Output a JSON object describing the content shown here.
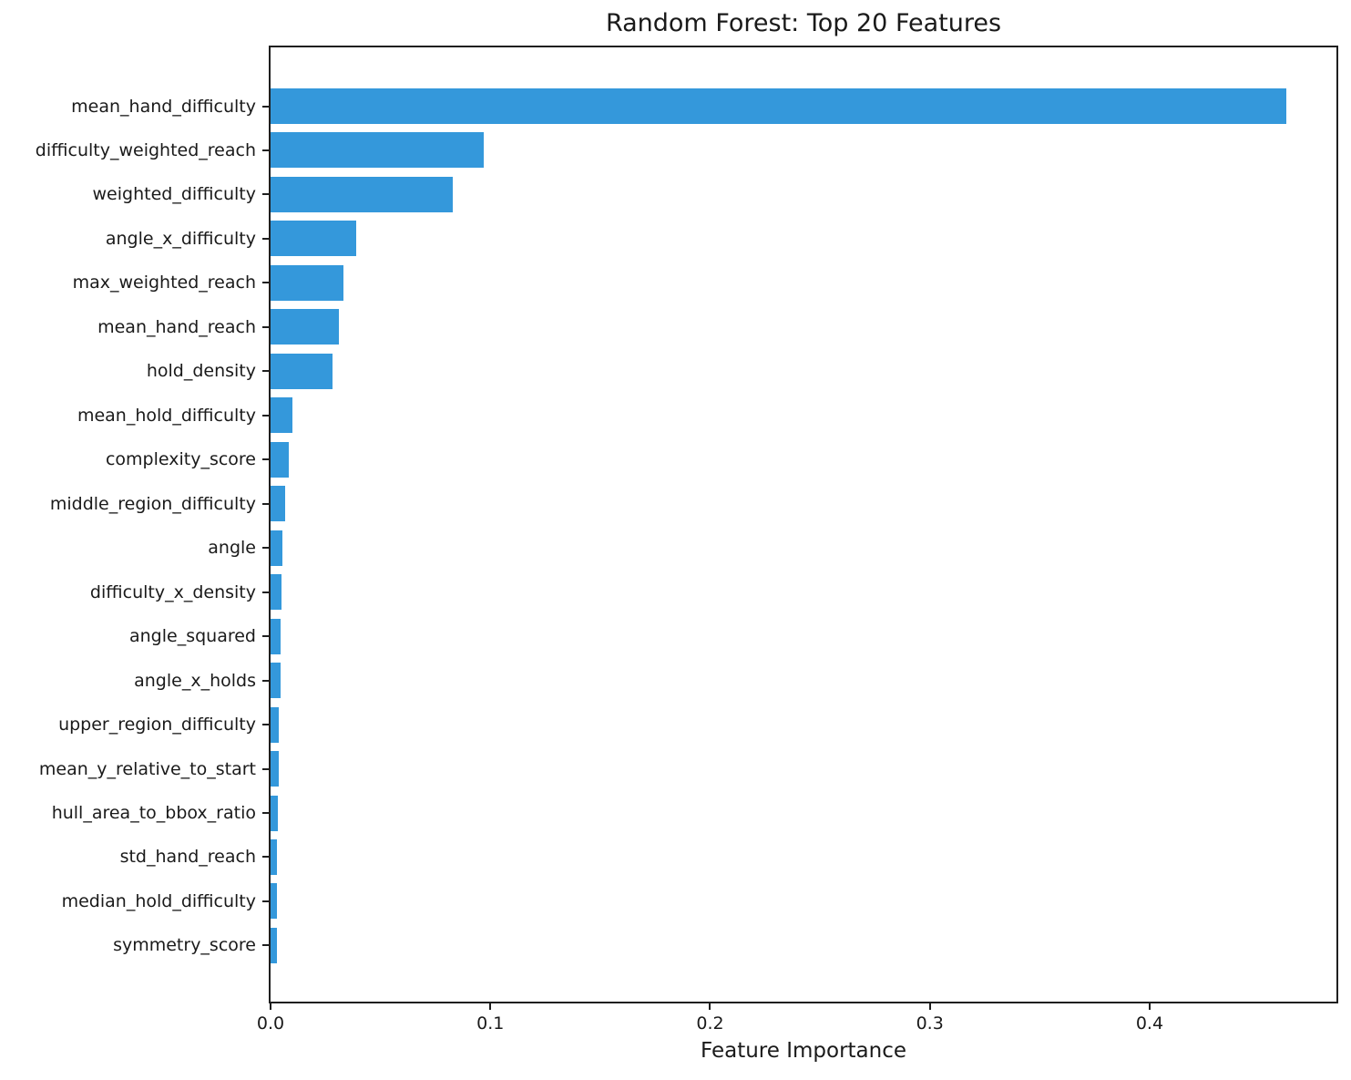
{
  "chart_data": {
    "type": "bar",
    "orientation": "horizontal",
    "title": "Random Forest: Top 20 Features",
    "xlabel": "Feature Importance",
    "ylabel": "",
    "xlim": [
      0,
      0.485
    ],
    "x_ticks": [
      0.0,
      0.1,
      0.2,
      0.3,
      0.4
    ],
    "x_tick_labels": [
      "0.0",
      "0.1",
      "0.2",
      "0.3",
      "0.4"
    ],
    "grid": false,
    "legend_position": "none",
    "bar_color": "#3498db",
    "categories": [
      "mean_hand_difficulty",
      "difficulty_weighted_reach",
      "weighted_difficulty",
      "angle_x_difficulty",
      "max_weighted_reach",
      "mean_hand_reach",
      "hold_density",
      "mean_hold_difficulty",
      "complexity_score",
      "middle_region_difficulty",
      "angle",
      "difficulty_x_density",
      "angle_squared",
      "angle_x_holds",
      "upper_region_difficulty",
      "mean_y_relative_to_start",
      "hull_area_to_bbox_ratio",
      "std_hand_reach",
      "median_hold_difficulty",
      "symmetry_score"
    ],
    "values": [
      0.462,
      0.097,
      0.083,
      0.039,
      0.033,
      0.031,
      0.028,
      0.01,
      0.0082,
      0.0066,
      0.0053,
      0.005,
      0.0046,
      0.0044,
      0.0038,
      0.0037,
      0.0033,
      0.0031,
      0.003,
      0.0029
    ]
  }
}
